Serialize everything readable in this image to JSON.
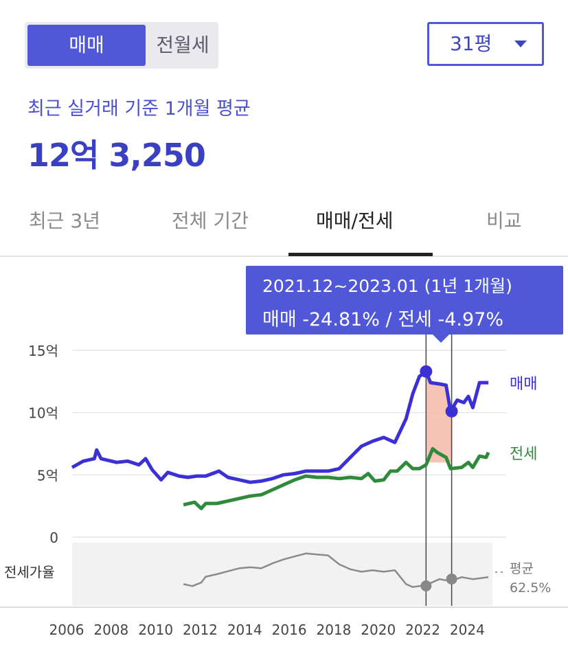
{
  "trade_toggle": {
    "active": "매매",
    "inactive": "전월세"
  },
  "size_select": {
    "value": "31평"
  },
  "summary": {
    "label": "최근 실거래 기준 1개월 평균",
    "price": "12억 3,250"
  },
  "tabs": [
    {
      "label": "최근 3년",
      "active": false
    },
    {
      "label": "전체 기간",
      "active": false
    },
    {
      "label": "매매/전세",
      "active": true
    },
    {
      "label": "비교",
      "active": false
    }
  ],
  "tooltip": {
    "period": "2021.12~2023.01 (1년 1개월)",
    "change": "매매 -24.81%  /  전세 -4.97%"
  },
  "colors": {
    "accent": "#5058d8",
    "sale": "#3b30d6",
    "jeonse": "#2f8a3c",
    "ratio": "#8a8a8a",
    "drop_area": "#f6b8a8"
  },
  "chart_data": {
    "type": "line",
    "x_ticks": [
      "2006",
      "2008",
      "2010",
      "2012",
      "2014",
      "2016",
      "2018",
      "2020",
      "2022",
      "2024"
    ],
    "y_ticks": [
      "15억",
      "10억",
      "5억",
      "0"
    ],
    "ylim": [
      0,
      15
    ],
    "series": [
      {
        "name": "매매",
        "points": [
          [
            2006.0,
            5.6
          ],
          [
            2006.5,
            6.1
          ],
          [
            2007.0,
            6.3
          ],
          [
            2007.1,
            7.0
          ],
          [
            2007.3,
            6.3
          ],
          [
            2008.0,
            6.0
          ],
          [
            2008.5,
            6.1
          ],
          [
            2009.0,
            5.8
          ],
          [
            2009.3,
            6.3
          ],
          [
            2009.6,
            5.4
          ],
          [
            2010.0,
            4.6
          ],
          [
            2010.3,
            5.2
          ],
          [
            2010.8,
            4.9
          ],
          [
            2011.2,
            4.8
          ],
          [
            2011.6,
            4.9
          ],
          [
            2012.0,
            4.9
          ],
          [
            2012.6,
            5.3
          ],
          [
            2013.0,
            4.8
          ],
          [
            2013.5,
            4.6
          ],
          [
            2014.0,
            4.4
          ],
          [
            2014.5,
            4.5
          ],
          [
            2015.0,
            4.7
          ],
          [
            2015.5,
            5.0
          ],
          [
            2016.0,
            5.1
          ],
          [
            2016.5,
            5.3
          ],
          [
            2017.0,
            5.3
          ],
          [
            2017.5,
            5.3
          ],
          [
            2018.0,
            5.5
          ],
          [
            2018.5,
            6.4
          ],
          [
            2019.0,
            7.3
          ],
          [
            2019.5,
            7.7
          ],
          [
            2020.0,
            8.0
          ],
          [
            2020.5,
            7.6
          ],
          [
            2021.0,
            9.5
          ],
          [
            2021.3,
            11.5
          ],
          [
            2021.6,
            12.9
          ],
          [
            2021.9,
            13.3
          ],
          [
            2022.1,
            12.4
          ],
          [
            2022.5,
            12.3
          ],
          [
            2022.8,
            12.2
          ],
          [
            2023.0,
            10.1
          ],
          [
            2023.3,
            11.0
          ],
          [
            2023.6,
            10.8
          ],
          [
            2023.8,
            11.3
          ],
          [
            2024.0,
            10.4
          ],
          [
            2024.3,
            12.4
          ],
          [
            2024.7,
            12.4
          ]
        ]
      },
      {
        "name": "전세",
        "points": [
          [
            2011.0,
            2.6
          ],
          [
            2011.5,
            2.8
          ],
          [
            2011.8,
            2.3
          ],
          [
            2012.0,
            2.7
          ],
          [
            2012.5,
            2.7
          ],
          [
            2013.0,
            2.9
          ],
          [
            2013.5,
            3.1
          ],
          [
            2014.0,
            3.3
          ],
          [
            2014.5,
            3.4
          ],
          [
            2015.0,
            3.8
          ],
          [
            2015.5,
            4.2
          ],
          [
            2016.0,
            4.6
          ],
          [
            2016.5,
            4.9
          ],
          [
            2017.0,
            4.8
          ],
          [
            2017.5,
            4.8
          ],
          [
            2018.0,
            4.7
          ],
          [
            2018.5,
            4.8
          ],
          [
            2019.0,
            4.7
          ],
          [
            2019.3,
            5.1
          ],
          [
            2019.6,
            4.5
          ],
          [
            2020.0,
            4.6
          ],
          [
            2020.3,
            5.3
          ],
          [
            2020.6,
            5.3
          ],
          [
            2021.0,
            6.0
          ],
          [
            2021.3,
            5.5
          ],
          [
            2021.6,
            5.5
          ],
          [
            2021.9,
            5.8
          ],
          [
            2022.2,
            7.1
          ],
          [
            2022.4,
            6.8
          ],
          [
            2022.8,
            6.4
          ],
          [
            2023.0,
            5.5
          ],
          [
            2023.5,
            5.6
          ],
          [
            2023.8,
            6.0
          ],
          [
            2024.0,
            5.6
          ],
          [
            2024.3,
            6.5
          ],
          [
            2024.6,
            6.4
          ],
          [
            2024.7,
            6.8
          ]
        ]
      },
      {
        "name": "전세가율",
        "points": [
          [
            2011.0,
            0.3
          ],
          [
            2011.4,
            0.26
          ],
          [
            2011.8,
            0.33
          ],
          [
            2012.0,
            0.45
          ],
          [
            2012.5,
            0.5
          ],
          [
            2013.0,
            0.56
          ],
          [
            2013.5,
            0.62
          ],
          [
            2014.0,
            0.64
          ],
          [
            2014.5,
            0.62
          ],
          [
            2015.0,
            0.72
          ],
          [
            2015.5,
            0.8
          ],
          [
            2016.0,
            0.86
          ],
          [
            2016.5,
            0.92
          ],
          [
            2017.0,
            0.9
          ],
          [
            2017.5,
            0.88
          ],
          [
            2018.0,
            0.7
          ],
          [
            2018.5,
            0.6
          ],
          [
            2019.0,
            0.55
          ],
          [
            2019.5,
            0.58
          ],
          [
            2020.0,
            0.55
          ],
          [
            2020.5,
            0.58
          ],
          [
            2021.0,
            0.3
          ],
          [
            2021.3,
            0.24
          ],
          [
            2021.9,
            0.28
          ],
          [
            2022.5,
            0.4
          ],
          [
            2023.0,
            0.36
          ],
          [
            2023.5,
            0.44
          ],
          [
            2024.0,
            0.4
          ],
          [
            2024.7,
            0.44
          ]
        ]
      }
    ],
    "highlight": {
      "start": 2021.9,
      "end": 2023.05,
      "start_value": 13.3,
      "end_value": 10.1
    },
    "ratio_avg": {
      "label": "평균",
      "value": "62.5%"
    },
    "ratio_label": "전세가율",
    "series_labels": [
      "매매",
      "전세"
    ]
  }
}
